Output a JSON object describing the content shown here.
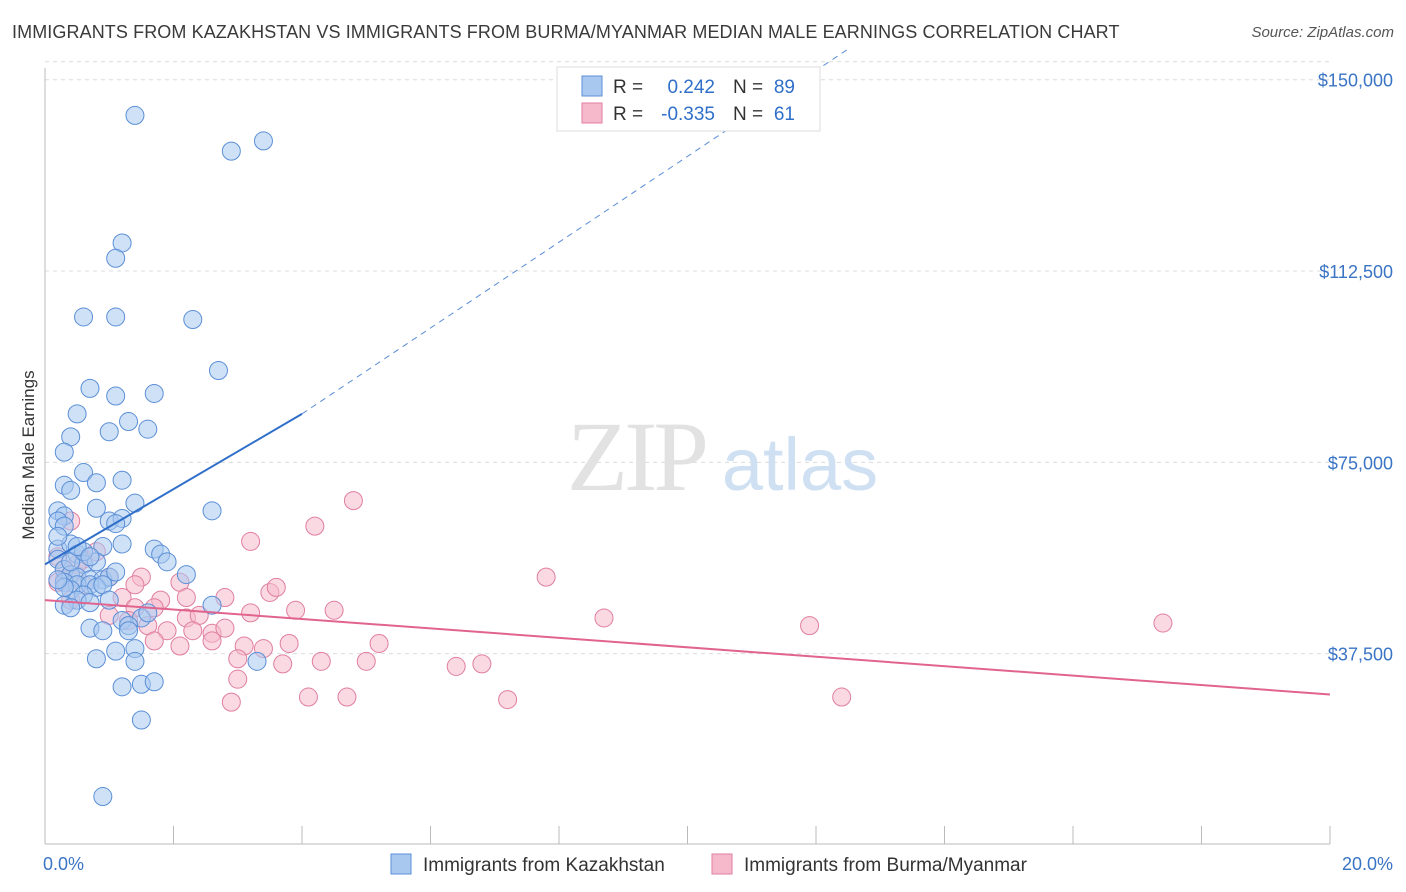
{
  "title": "IMMIGRANTS FROM KAZAKHSTAN VS IMMIGRANTS FROM BURMA/MYANMAR MEDIAN MALE EARNINGS CORRELATION CHART",
  "source": "Source: ZipAtlas.com",
  "watermark": {
    "zip": "ZIP",
    "atlas": "atlas"
  },
  "colors": {
    "blue_fill": "#a8c8f0",
    "blue_stroke": "#5b8fd6",
    "blue_line": "#2f6fc9",
    "pink_fill": "#f6b9cc",
    "pink_stroke": "#e07ea0",
    "pink_line": "#e0648e",
    "tick_text": "#3a74c4",
    "grid": "#dcdcdc"
  },
  "legend": {
    "rows": [
      {
        "r_label": "R =",
        "r_value": "0.242",
        "n_label": "N =",
        "n_value": "89"
      },
      {
        "r_label": "R =",
        "r_value": "-0.335",
        "n_label": "N =",
        "n_value": "61"
      }
    ]
  },
  "chart_data": {
    "type": "scatter",
    "title": "IMMIGRANTS FROM KAZAKHSTAN VS IMMIGRANTS FROM BURMA/MYANMAR MEDIAN MALE EARNINGS CORRELATION CHART",
    "xlabel": "",
    "ylabel": "Median Male Earnings",
    "xlim": [
      0,
      20
    ],
    "ylim": [
      0,
      155000
    ],
    "x_tick_labels": [
      "0.0%",
      "20.0%"
    ],
    "y_ticks": [
      37500,
      75000,
      112500,
      150000
    ],
    "y_tick_labels": [
      "$37,500",
      "$75,000",
      "$112,500",
      "$150,000"
    ],
    "grid": true,
    "legend_position": "top-center",
    "series": [
      {
        "name": "Immigrants from Kazakhstan",
        "color": "#a8c8f0",
        "R": 0.242,
        "N": 89,
        "trend": {
          "x0": 0.0,
          "y0": 55000,
          "x1": 4.0,
          "y1": 84500,
          "dashed_to_x": 12.5,
          "dashed_to_y": 156000
        },
        "points": [
          [
            1.4,
            143000
          ],
          [
            2.9,
            136000
          ],
          [
            3.4,
            138000
          ],
          [
            1.2,
            118000
          ],
          [
            1.1,
            115000
          ],
          [
            0.6,
            103500
          ],
          [
            1.1,
            103500
          ],
          [
            2.3,
            103000
          ],
          [
            2.7,
            93000
          ],
          [
            0.7,
            89500
          ],
          [
            1.7,
            88500
          ],
          [
            1.1,
            88000
          ],
          [
            0.5,
            84500
          ],
          [
            1.3,
            83000
          ],
          [
            1.6,
            81500
          ],
          [
            1.0,
            81000
          ],
          [
            0.4,
            80000
          ],
          [
            0.3,
            77000
          ],
          [
            0.6,
            73000
          ],
          [
            0.8,
            71000
          ],
          [
            0.3,
            70500
          ],
          [
            1.2,
            71500
          ],
          [
            0.4,
            69500
          ],
          [
            1.4,
            67000
          ],
          [
            0.2,
            65500
          ],
          [
            0.3,
            64500
          ],
          [
            0.8,
            66000
          ],
          [
            2.6,
            65500
          ],
          [
            0.2,
            63500
          ],
          [
            0.3,
            62500
          ],
          [
            1.0,
            63500
          ],
          [
            1.2,
            64000
          ],
          [
            1.1,
            63000
          ],
          [
            0.2,
            58000
          ],
          [
            0.4,
            59000
          ],
          [
            0.5,
            57000
          ],
          [
            0.9,
            58500
          ],
          [
            1.2,
            59000
          ],
          [
            1.7,
            58000
          ],
          [
            1.8,
            57000
          ],
          [
            1.9,
            55500
          ],
          [
            0.2,
            56000
          ],
          [
            0.6,
            55000
          ],
          [
            0.8,
            55500
          ],
          [
            0.3,
            54000
          ],
          [
            0.4,
            53000
          ],
          [
            0.5,
            52500
          ],
          [
            0.7,
            52000
          ],
          [
            0.9,
            52000
          ],
          [
            1.0,
            52500
          ],
          [
            1.1,
            53500
          ],
          [
            2.2,
            53000
          ],
          [
            0.3,
            51500
          ],
          [
            0.5,
            51000
          ],
          [
            0.7,
            51000
          ],
          [
            0.8,
            50500
          ],
          [
            0.9,
            51000
          ],
          [
            0.4,
            50000
          ],
          [
            0.6,
            49000
          ],
          [
            0.5,
            48000
          ],
          [
            0.7,
            47500
          ],
          [
            2.6,
            47000
          ],
          [
            0.3,
            47000
          ],
          [
            1.2,
            44000
          ],
          [
            1.5,
            44500
          ],
          [
            1.3,
            43000
          ],
          [
            0.7,
            42500
          ],
          [
            0.9,
            42000
          ],
          [
            1.3,
            42000
          ],
          [
            1.1,
            38000
          ],
          [
            1.4,
            38500
          ],
          [
            0.8,
            36500
          ],
          [
            1.4,
            36000
          ],
          [
            3.3,
            36000
          ],
          [
            1.2,
            31000
          ],
          [
            1.5,
            31500
          ],
          [
            1.7,
            32000
          ],
          [
            1.5,
            24500
          ],
          [
            0.9,
            9500
          ],
          [
            0.4,
            55500
          ],
          [
            0.2,
            60500
          ],
          [
            0.6,
            57500
          ],
          [
            0.3,
            50500
          ],
          [
            0.5,
            58500
          ],
          [
            0.7,
            56500
          ],
          [
            1.6,
            45500
          ],
          [
            0.4,
            46500
          ],
          [
            1.0,
            48000
          ],
          [
            0.2,
            52000
          ]
        ]
      },
      {
        "name": "Immigrants from Burma/Myanmar",
        "color": "#f6b9cc",
        "R": -0.335,
        "N": 61,
        "trend": {
          "x0": 0.0,
          "y0": 48000,
          "x1": 20.0,
          "y1": 29500
        },
        "points": [
          [
            0.4,
            63500
          ],
          [
            0.2,
            56500
          ],
          [
            0.6,
            56000
          ],
          [
            0.8,
            57500
          ],
          [
            0.5,
            55000
          ],
          [
            0.3,
            54000
          ],
          [
            0.3,
            52000
          ],
          [
            0.4,
            53000
          ],
          [
            0.2,
            51500
          ],
          [
            0.6,
            51000
          ],
          [
            1.0,
            52500
          ],
          [
            1.5,
            52500
          ],
          [
            2.1,
            51500
          ],
          [
            1.4,
            51000
          ],
          [
            1.8,
            48000
          ],
          [
            2.2,
            48500
          ],
          [
            2.8,
            48500
          ],
          [
            3.5,
            49500
          ],
          [
            3.6,
            50500
          ],
          [
            0.4,
            48000
          ],
          [
            1.2,
            48500
          ],
          [
            1.4,
            46500
          ],
          [
            1.7,
            46500
          ],
          [
            2.2,
            44500
          ],
          [
            2.4,
            45000
          ],
          [
            3.2,
            45500
          ],
          [
            3.9,
            46000
          ],
          [
            4.5,
            46000
          ],
          [
            1.0,
            45000
          ],
          [
            1.3,
            44000
          ],
          [
            1.6,
            43000
          ],
          [
            1.9,
            42000
          ],
          [
            2.3,
            42000
          ],
          [
            2.6,
            41500
          ],
          [
            2.8,
            42500
          ],
          [
            1.7,
            40000
          ],
          [
            2.1,
            39000
          ],
          [
            2.6,
            40000
          ],
          [
            3.1,
            39000
          ],
          [
            3.4,
            38500
          ],
          [
            3.8,
            39500
          ],
          [
            5.2,
            39500
          ],
          [
            3.0,
            36500
          ],
          [
            3.7,
            35500
          ],
          [
            4.3,
            36000
          ],
          [
            5.0,
            36000
          ],
          [
            6.4,
            35000
          ],
          [
            6.8,
            35500
          ],
          [
            3.0,
            32500
          ],
          [
            2.9,
            28000
          ],
          [
            4.1,
            29000
          ],
          [
            4.7,
            29000
          ],
          [
            7.2,
            28500
          ],
          [
            4.8,
            67500
          ],
          [
            4.2,
            62500
          ],
          [
            3.2,
            59500
          ],
          [
            7.8,
            52500
          ],
          [
            8.7,
            44500
          ],
          [
            11.9,
            43000
          ],
          [
            12.4,
            29000
          ],
          [
            17.4,
            43500
          ]
        ]
      }
    ]
  },
  "bottom_legend": [
    "Immigrants from Kazakhstan",
    "Immigrants from Burma/Myanmar"
  ]
}
